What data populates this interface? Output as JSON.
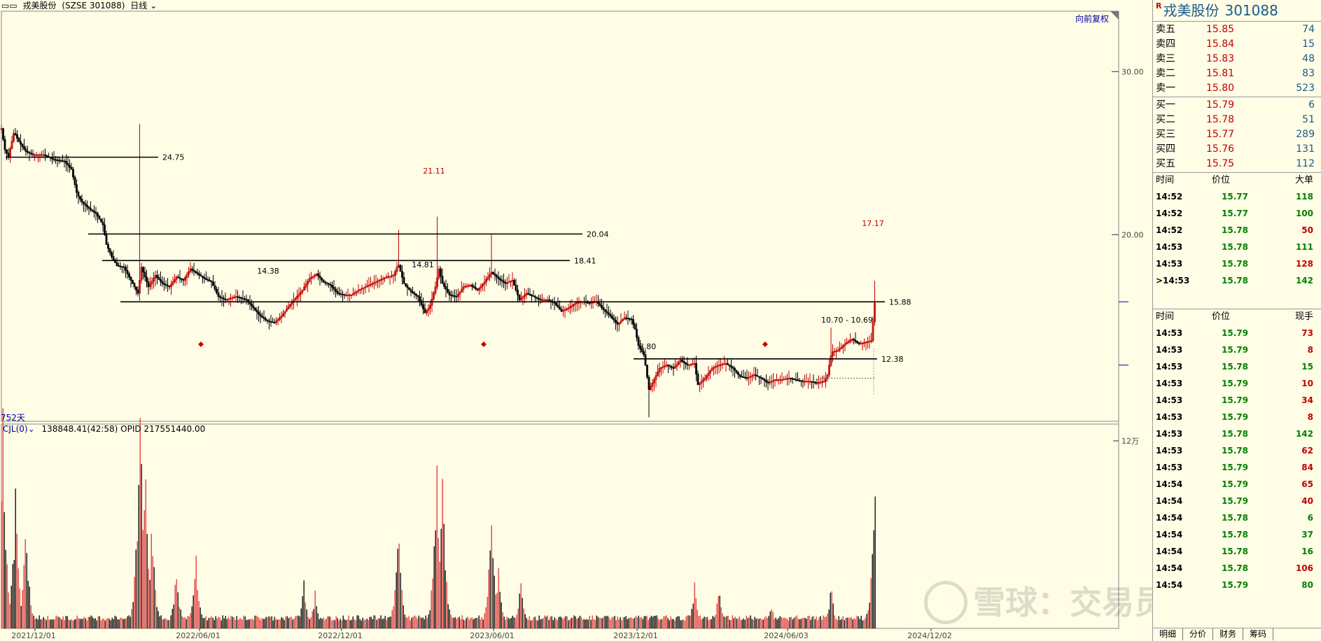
{
  "topbar": {
    "title": "戎美股份",
    "code": "(SZSE 301088)",
    "period": "日线"
  },
  "restore_label": "向前复权",
  "days_label": "752天",
  "volume_header": {
    "indicator": "CJL(0)",
    "values": "138848.41(42:58)  OPID 217551440.00"
  },
  "watermark": "雪球：交易员豆起",
  "chart_data": {
    "type": "candlestick",
    "date_ticks": [
      "2021/12/01",
      "2022/06/01",
      "2022/12/01",
      "2023/06/01",
      "2023/12/01",
      "2024/06/03",
      "2024/12/02"
    ],
    "price_ticks": [
      "30.00",
      "20.00"
    ],
    "volume_tick": "12万",
    "levels": [
      {
        "value": "24.75"
      },
      {
        "value": "20.04"
      },
      {
        "value": "18.41"
      },
      {
        "value": "15.88"
      },
      {
        "value": "12.38"
      }
    ],
    "annotations": [
      "21.11",
      "14.38",
      "14.81",
      "17.17",
      "10.70 - 10.69",
      "8.80"
    ],
    "price_path": [
      [
        0,
        26.5
      ],
      [
        5,
        25.2
      ],
      [
        10,
        24.8
      ],
      [
        18,
        26.3
      ],
      [
        25,
        25.7
      ],
      [
        35,
        25.1
      ],
      [
        45,
        24.9
      ],
      [
        60,
        24.9
      ],
      [
        75,
        24.6
      ],
      [
        90,
        24.5
      ],
      [
        100,
        24.0
      ],
      [
        108,
        22.5
      ],
      [
        115,
        22.0
      ],
      [
        125,
        21.6
      ],
      [
        135,
        21.3
      ],
      [
        145,
        20.6
      ],
      [
        150,
        19.4
      ],
      [
        158,
        18.6
      ],
      [
        165,
        18.1
      ],
      [
        175,
        18.0
      ],
      [
        185,
        17.2
      ],
      [
        195,
        16.4
      ],
      [
        200,
        18.0
      ],
      [
        210,
        16.8
      ],
      [
        220,
        17.5
      ],
      [
        230,
        17.0
      ],
      [
        240,
        16.8
      ],
      [
        250,
        17.4
      ],
      [
        260,
        17.2
      ],
      [
        270,
        17.9
      ],
      [
        280,
        17.6
      ],
      [
        290,
        17.3
      ],
      [
        300,
        17.1
      ],
      [
        310,
        16.2
      ],
      [
        320,
        16.0
      ],
      [
        335,
        16.2
      ],
      [
        350,
        16.0
      ],
      [
        360,
        15.5
      ],
      [
        370,
        15.0
      ],
      [
        380,
        14.7
      ],
      [
        390,
        14.6
      ],
      [
        400,
        15.0
      ],
      [
        410,
        15.6
      ],
      [
        420,
        16.1
      ],
      [
        430,
        16.6
      ],
      [
        440,
        17.3
      ],
      [
        450,
        17.6
      ],
      [
        460,
        17.1
      ],
      [
        470,
        16.9
      ],
      [
        480,
        16.4
      ],
      [
        490,
        16.3
      ],
      [
        500,
        16.3
      ],
      [
        510,
        16.6
      ],
      [
        520,
        16.8
      ],
      [
        530,
        17.0
      ],
      [
        540,
        17.2
      ],
      [
        550,
        17.4
      ],
      [
        560,
        17.5
      ],
      [
        567,
        18.2
      ],
      [
        575,
        17.0
      ],
      [
        585,
        16.5
      ],
      [
        595,
        16.2
      ],
      [
        605,
        15.2
      ],
      [
        612,
        15.6
      ],
      [
        620,
        16.8
      ],
      [
        625,
        17.9
      ],
      [
        630,
        17.0
      ],
      [
        640,
        16.3
      ],
      [
        650,
        16.2
      ],
      [
        660,
        16.8
      ],
      [
        670,
        16.9
      ],
      [
        680,
        16.6
      ],
      [
        690,
        17.1
      ],
      [
        700,
        17.7
      ],
      [
        710,
        17.3
      ],
      [
        720,
        17.0
      ],
      [
        730,
        17.2
      ],
      [
        740,
        16.0
      ],
      [
        750,
        16.4
      ],
      [
        760,
        16.2
      ],
      [
        770,
        16.0
      ],
      [
        780,
        16.0
      ],
      [
        790,
        15.8
      ],
      [
        800,
        15.3
      ],
      [
        810,
        15.5
      ],
      [
        820,
        15.8
      ],
      [
        830,
        15.9
      ],
      [
        840,
        15.8
      ],
      [
        850,
        15.9
      ],
      [
        860,
        15.4
      ],
      [
        870,
        15.0
      ],
      [
        880,
        14.5
      ],
      [
        890,
        14.9
      ],
      [
        900,
        14.8
      ],
      [
        905,
        14.2
      ],
      [
        910,
        13.2
      ],
      [
        918,
        12.6
      ],
      [
        925,
        10.5
      ],
      [
        930,
        10.9
      ],
      [
        940,
        11.8
      ],
      [
        950,
        12.0
      ],
      [
        960,
        11.8
      ],
      [
        970,
        12.3
      ],
      [
        980,
        12.0
      ],
      [
        990,
        12.1
      ],
      [
        995,
        10.8
      ],
      [
        1005,
        11.2
      ],
      [
        1015,
        11.8
      ],
      [
        1025,
        12.0
      ],
      [
        1035,
        12.1
      ],
      [
        1045,
        11.8
      ],
      [
        1055,
        11.3
      ],
      [
        1065,
        11.2
      ],
      [
        1075,
        11.4
      ],
      [
        1085,
        11.2
      ],
      [
        1095,
        10.9
      ],
      [
        1105,
        11.1
      ],
      [
        1115,
        11.1
      ],
      [
        1125,
        11.2
      ],
      [
        1135,
        11.1
      ],
      [
        1145,
        11.0
      ],
      [
        1155,
        11.0
      ],
      [
        1165,
        10.9
      ],
      [
        1175,
        11.0
      ],
      [
        1180,
        11.4
      ],
      [
        1186,
        12.8
      ],
      [
        1195,
        12.9
      ],
      [
        1205,
        13.3
      ],
      [
        1215,
        13.6
      ],
      [
        1225,
        13.3
      ],
      [
        1235,
        13.4
      ],
      [
        1243,
        13.5
      ],
      [
        1247,
        15.8
      ]
    ],
    "volume_spikes": [
      {
        "x": 2,
        "v": 0.9
      },
      {
        "x": 20,
        "v": 0.55
      },
      {
        "x": 35,
        "v": 0.45
      },
      {
        "x": 198,
        "v": 1.0
      },
      {
        "x": 205,
        "v": 0.7
      },
      {
        "x": 215,
        "v": 0.45
      },
      {
        "x": 250,
        "v": 0.25
      },
      {
        "x": 278,
        "v": 0.3
      },
      {
        "x": 432,
        "v": 0.2
      },
      {
        "x": 448,
        "v": 0.15
      },
      {
        "x": 567,
        "v": 0.42
      },
      {
        "x": 622,
        "v": 0.72
      },
      {
        "x": 630,
        "v": 0.6
      },
      {
        "x": 700,
        "v": 0.5
      },
      {
        "x": 710,
        "v": 0.25
      },
      {
        "x": 742,
        "v": 0.2
      },
      {
        "x": 990,
        "v": 0.2
      },
      {
        "x": 1025,
        "v": 0.18
      },
      {
        "x": 1100,
        "v": 0.1
      },
      {
        "x": 1185,
        "v": 0.18
      },
      {
        "x": 1248,
        "v": 0.67
      }
    ]
  },
  "side": {
    "stock_name": "戎美股份",
    "stock_code": "301088",
    "r_icon": "R",
    "asks": [
      {
        "label": "卖五",
        "price": "15.85",
        "vol": "74"
      },
      {
        "label": "卖四",
        "price": "15.84",
        "vol": "15"
      },
      {
        "label": "卖三",
        "price": "15.83",
        "vol": "48"
      },
      {
        "label": "卖二",
        "price": "15.81",
        "vol": "83"
      },
      {
        "label": "卖一",
        "price": "15.80",
        "vol": "523"
      }
    ],
    "bids": [
      {
        "label": "买一",
        "price": "15.79",
        "vol": "6"
      },
      {
        "label": "买二",
        "price": "15.78",
        "vol": "51"
      },
      {
        "label": "买三",
        "price": "15.77",
        "vol": "289"
      },
      {
        "label": "买四",
        "price": "15.76",
        "vol": "131"
      },
      {
        "label": "买五",
        "price": "15.75",
        "vol": "112"
      }
    ],
    "big_header": {
      "time": "时间",
      "price": "价位",
      "vol": "大单"
    },
    "big_orders": [
      {
        "time": "14:52",
        "price": "15.77",
        "vol": "118",
        "dir": "g"
      },
      {
        "time": "14:52",
        "price": "15.77",
        "vol": "100",
        "dir": "g"
      },
      {
        "time": "14:52",
        "price": "15.78",
        "vol": "50",
        "dir": "r"
      },
      {
        "time": "14:53",
        "price": "15.78",
        "vol": "111",
        "dir": "g"
      },
      {
        "time": "14:53",
        "price": "15.78",
        "vol": "128",
        "dir": "r"
      },
      {
        "time": ">14:53",
        "price": "15.78",
        "vol": "142",
        "dir": "g"
      }
    ],
    "tick_header": {
      "time": "时间",
      "price": "价位",
      "vol": "现手"
    },
    "ticks": [
      {
        "time": "14:53",
        "price": "15.79",
        "vol": "73",
        "dir": "r"
      },
      {
        "time": "14:53",
        "price": "15.79",
        "vol": "8",
        "dir": "r"
      },
      {
        "time": "14:53",
        "price": "15.78",
        "vol": "15",
        "dir": "g"
      },
      {
        "time": "14:53",
        "price": "15.79",
        "vol": "10",
        "dir": "r"
      },
      {
        "time": "14:53",
        "price": "15.79",
        "vol": "34",
        "dir": "r"
      },
      {
        "time": "14:53",
        "price": "15.79",
        "vol": "8",
        "dir": "r"
      },
      {
        "time": "14:53",
        "price": "15.78",
        "vol": "142",
        "dir": "g"
      },
      {
        "time": "14:53",
        "price": "15.78",
        "vol": "62",
        "dir": "r"
      },
      {
        "time": "14:53",
        "price": "15.79",
        "vol": "84",
        "dir": "r"
      },
      {
        "time": "14:54",
        "price": "15.79",
        "vol": "65",
        "dir": "r"
      },
      {
        "time": "14:54",
        "price": "15.79",
        "vol": "40",
        "dir": "r"
      },
      {
        "time": "14:54",
        "price": "15.78",
        "vol": "6",
        "dir": "g"
      },
      {
        "time": "14:54",
        "price": "15.78",
        "vol": "37",
        "dir": "g"
      },
      {
        "time": "14:54",
        "price": "15.78",
        "vol": "16",
        "dir": "g"
      },
      {
        "time": "14:54",
        "price": "15.78",
        "vol": "106",
        "dir": "r"
      },
      {
        "time": "14:54",
        "price": "15.79",
        "vol": "80",
        "dir": "g"
      }
    ],
    "tabs": [
      "明细",
      "分价",
      "财务",
      "筹码"
    ]
  }
}
